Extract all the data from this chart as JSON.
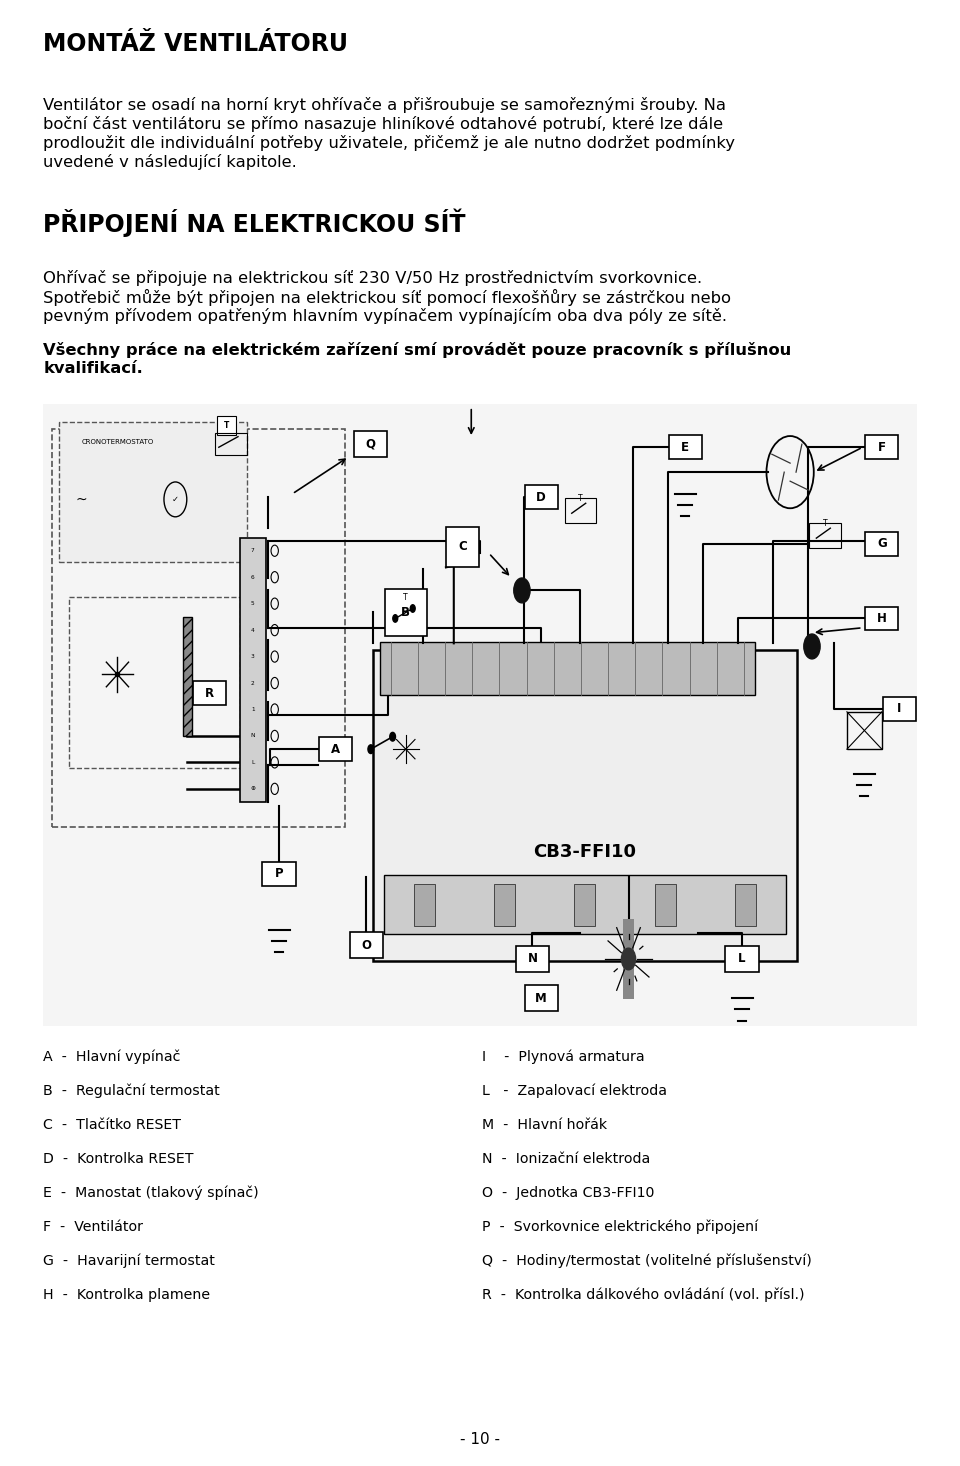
{
  "title1": "MONTÁŽ VENTILÁTORU",
  "para1": "Ventilátor se osadí na horní kryt ohřívače a přišroubuje se samořeznými šrouby. Na boční část ventilátoru se přímo nasazuje hliníkové odtahové potrubí, které lze dále prodloužit dle individuální potřeby uživatele, přičemž je ale nutno dodržet podmínky uvedené v následující kapitole.",
  "title2": "PŘIPOJENÍ NA ELEKTRICKOU SÍŤ",
  "para2a": "Ohřívač se připojuje na elektrickou síť 230 V/50 Hz prostřednictvím svorkovnice.",
  "para2b": "Spotřebič může být připojen na elektrickou síť pomocí flexošňůry se zástrčkou nebo pevným přívodem opatřeným hlavním vypínačem vypínajícím oba dva póly ze sítě.",
  "para3": "Všechny práce na elektrickém zařízení smí provádět pouze pracovník s přílušnou kvalifikací.",
  "legend_left": [
    "A  -  Hlavní vypínač",
    "B  -  Regulační termostat",
    "C  -  Tlačítko RESET",
    "D  -  Kontrolka RESET",
    "E  -  Manostat (tlakový spínač)",
    "F  -  Ventilátor",
    "G  -  Havarijní termostat",
    "H  -  Kontrolka plamene"
  ],
  "legend_right": [
    "I    -  Plynová armatura",
    "L   -  Zapalovací elektroda",
    "M  -  Hlavní hořák",
    "N  -  Ionizační elektroda",
    "O  -  Jednotka CB3-FFI10",
    "P  -  Svorkovnice elektrického připojení",
    "Q  -  Hodiny/termostat (volitelné příslušenství)",
    "R  -  Kontrolka dálkového ovládání (vol. přísl.)"
  ],
  "page_number": "- 10 -",
  "bg_color": "#ffffff",
  "text_color": "#000000"
}
